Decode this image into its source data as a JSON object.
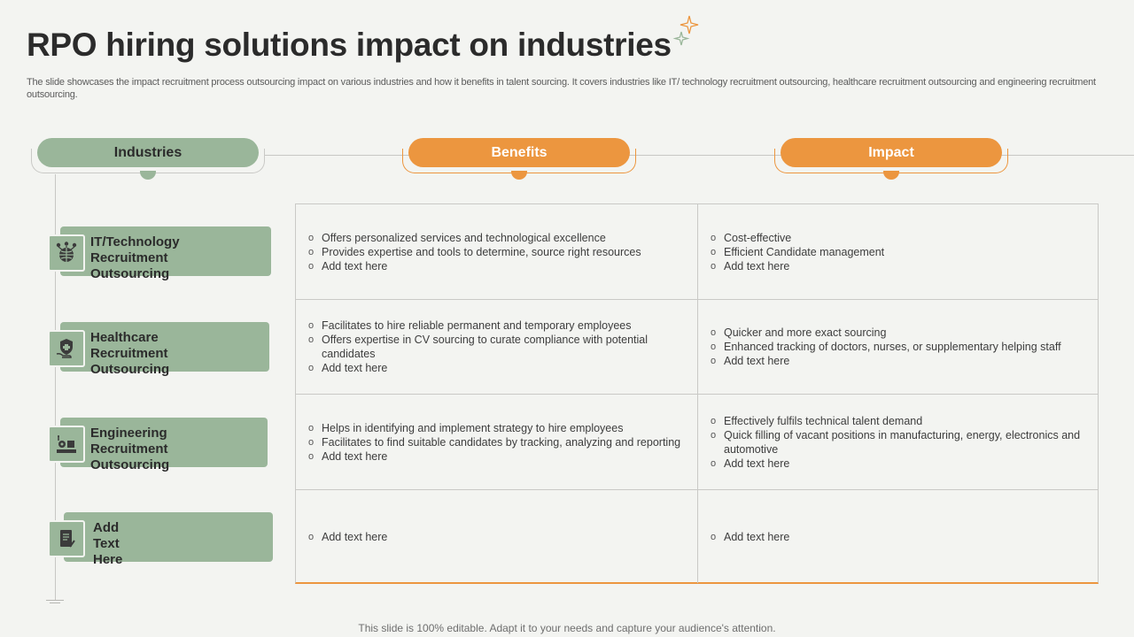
{
  "title": "RPO hiring solutions impact on industries",
  "subtitle": "The slide showcases the impact recruitment process outsourcing impact on various industries and how it benefits in talent sourcing. It covers industries like IT/ technology recruitment outsourcing, healthcare recruitment outsourcing and engineering recruitment outsourcing.",
  "headers": {
    "industries": "Industries",
    "benefits": "Benefits",
    "impact": "Impact"
  },
  "colors": {
    "green": "#9ab69a",
    "orange": "#ec963f",
    "background": "#f3f4f1"
  },
  "rows": [
    {
      "industry": [
        "IT/Technology",
        "Recruitment Outsourcing"
      ],
      "icon": "globe-network-icon",
      "benefits": [
        "Offers personalized services and technological excellence",
        "Provides expertise and tools to determine, source right resources",
        "Add text here"
      ],
      "impact": [
        "Cost-effective",
        "Efficient Candidate management",
        "Add text here"
      ]
    },
    {
      "industry": [
        "Healthcare",
        "Recruitment Outsourcing"
      ],
      "icon": "shield-hand-icon",
      "benefits": [
        "Facilitates to hire reliable permanent and temporary employees",
        "Offers expertise in CV sourcing to curate compliance with potential candidates",
        "Add text here"
      ],
      "impact": [
        "Quicker and more exact sourcing",
        "Enhanced tracking of doctors, nurses, or supplementary helping staff",
        "Add text here"
      ]
    },
    {
      "industry": [
        "Engineering",
        "Recruitment Outsourcing"
      ],
      "icon": "engineering-tools-icon",
      "benefits": [
        "Helps in identifying and implement strategy to hire employees",
        "Facilitates to find suitable candidates by tracking, analyzing and reporting",
        "Add text here"
      ],
      "impact": [
        "Effectively fulfils technical talent demand",
        "Quick filling of vacant positions in manufacturing, energy, electronics and automotive",
        "Add text here"
      ]
    },
    {
      "industry": [
        "Add",
        "Text Here"
      ],
      "icon": "document-pen-icon",
      "benefits": [
        "Add text here"
      ],
      "impact": [
        "Add text here"
      ]
    }
  ],
  "footer": "This slide is 100% editable. Adapt it to your needs and capture your audience's attention."
}
